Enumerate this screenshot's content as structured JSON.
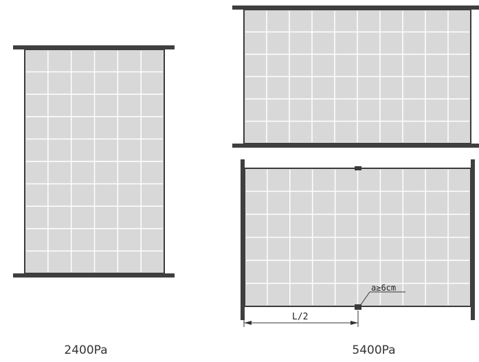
{
  "diagrams": [
    {
      "id": "left",
      "caption": "2400Pa",
      "cells": {
        "cols": 6,
        "rows": 10
      }
    },
    {
      "id": "right-top",
      "cells": {
        "cols": 10,
        "rows": 6
      }
    },
    {
      "id": "right-bottom",
      "cells": {
        "cols": 10,
        "rows": 6
      },
      "annotation": "a≥6cm",
      "dimension_label": "L/2"
    }
  ],
  "right_caption": "5400Pa",
  "colors": {
    "cell": "#d8d8d8",
    "grid": "#ffffff",
    "frame": "#3a3a3a",
    "support": "#555555"
  }
}
